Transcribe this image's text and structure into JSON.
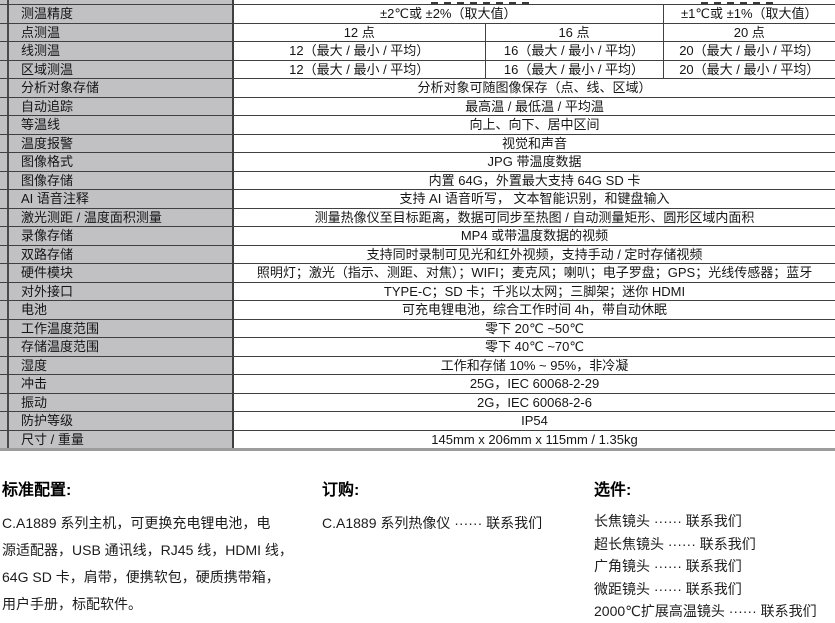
{
  "spec_table": {
    "rows": [
      {
        "label": "测温精度",
        "cells": [
          "±2℃或 ±2%（取大值）",
          "±1℃或 ±1%（取大值）"
        ]
      },
      {
        "label": "点测温",
        "cells": [
          "12 点",
          "16 点",
          "20 点"
        ]
      },
      {
        "label": "线测温",
        "cells": [
          "12（最大 / 最小 / 平均）",
          "16（最大 / 最小 / 平均）",
          "20（最大 / 最小 / 平均）"
        ]
      },
      {
        "label": "区域测温",
        "cells": [
          "12（最大 / 最小 / 平均）",
          "16（最大 / 最小 / 平均）",
          "20（最大 / 最小 / 平均）"
        ]
      },
      {
        "label": "分析对象存储",
        "cells": [
          "分析对象可随图像保存（点、线、区域）"
        ]
      },
      {
        "label": "自动追踪",
        "cells": [
          "最高温 / 最低温 / 平均温"
        ]
      },
      {
        "label": "等温线",
        "cells": [
          "向上、向下、居中区间"
        ]
      },
      {
        "label": "温度报警",
        "cells": [
          "视觉和声音"
        ]
      },
      {
        "label": "图像格式",
        "cells": [
          "JPG 带温度数据"
        ]
      },
      {
        "label": "图像存储",
        "cells": [
          "内置 64G，外置最大支持 64G SD 卡"
        ]
      },
      {
        "label": "AI 语音注释",
        "cells": [
          "支持 AI 语音听写， 文本智能识别，和键盘输入"
        ]
      },
      {
        "label": "激光测距 / 温度面积测量",
        "cells": [
          "测量热像仪至目标距离，数据可同步至热图 / 自动测量矩形、圆形区域内面积"
        ]
      },
      {
        "label": "录像存储",
        "cells": [
          "MP4 或带温度数据的视频"
        ]
      },
      {
        "label": "双路存储",
        "cells": [
          "支持同时录制可见光和红外视频，支持手动 / 定时存储视频"
        ]
      },
      {
        "label": "硬件模块",
        "cells": [
          "照明灯；激光（指示、测距、对焦）；WIFI；麦克风；喇叭；电子罗盘；GPS；光线传感器；蓝牙"
        ]
      },
      {
        "label": "对外接口",
        "cells": [
          "TYPE-C；SD 卡；千兆以太网；三脚架；迷你 HDMI"
        ]
      },
      {
        "label": "电池",
        "cells": [
          "可充电锂电池，综合工作时间 4h，带自动休眠"
        ]
      },
      {
        "label": "工作温度范围",
        "cells": [
          "零下 20℃ ~50℃"
        ]
      },
      {
        "label": "存储温度范围",
        "cells": [
          "零下 40℃ ~70℃"
        ]
      },
      {
        "label": "湿度",
        "cells": [
          "工作和存储 10% ~ 95%，非冷凝"
        ]
      },
      {
        "label": "冲击",
        "cells": [
          "25G，IEC 60068-2-29"
        ]
      },
      {
        "label": "振动",
        "cells": [
          "2G，IEC 60068-2-6"
        ]
      },
      {
        "label": "防护等级",
        "cells": [
          "IP54"
        ]
      },
      {
        "label": "尺寸 / 重量",
        "cells": [
          "145mm x 206mm x 115mm / 1.35kg"
        ]
      }
    ]
  },
  "sections": {
    "standard": {
      "title": "标准配置:",
      "lines": [
        "C.A1889 系列主机，可更换充电锂电池，电",
        "源适配器，USB 通讯线，RJ45 线，HDMI 线，",
        "64G SD 卡，肩带，便携软包，硬质携带箱，",
        "用户手册，标配软件。"
      ]
    },
    "order": {
      "title": "订购:",
      "lines": [
        "C.A1889 系列热像仪 ······ 联系我们"
      ]
    },
    "options": {
      "title": "选件:",
      "lines": [
        "长焦镜头 ······ 联系我们",
        "超长焦镜头 ······ 联系我们",
        "广角镜头 ······ 联系我们",
        "微距镜头 ······ 联系我们",
        "2000℃扩展高温镜头 ······ 联系我们"
      ]
    }
  }
}
